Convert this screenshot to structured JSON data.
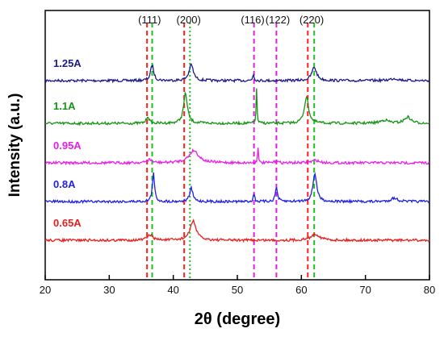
{
  "chart_data": {
    "type": "line",
    "title": "",
    "xlabel": "2θ (degree)",
    "ylabel": "Intensity (a.u.)",
    "xlim": [
      20,
      80
    ],
    "x_ticks": [
      20,
      30,
      40,
      50,
      60,
      70,
      80
    ],
    "y_tick_labels": false,
    "grid": false,
    "legend": "inline labels at left of each trace",
    "reference_lines": [
      {
        "x": 35.9,
        "color": "#ff2020",
        "style": "dashed"
      },
      {
        "x": 36.7,
        "color": "#20c020",
        "style": "dashed"
      },
      {
        "x": 41.7,
        "color": "#ff2020",
        "style": "dashed"
      },
      {
        "x": 42.6,
        "color": "#20c020",
        "style": "dotted"
      },
      {
        "x": 52.6,
        "color": "#e020e0",
        "style": "dashed"
      },
      {
        "x": 56.1,
        "color": "#e020e0",
        "style": "dashed"
      },
      {
        "x": 61.0,
        "color": "#ff2020",
        "style": "dashed"
      },
      {
        "x": 62.0,
        "color": "#20c020",
        "style": "dashed"
      }
    ],
    "annotations": [
      {
        "text": "(111)",
        "x": 36.3
      },
      {
        "text": "(200)",
        "x": 42.4
      },
      {
        "text": "(116)",
        "x": 52.4
      },
      {
        "text": "(122)",
        "x": 56.3
      },
      {
        "text": "(220)",
        "x": 61.6
      }
    ],
    "series": [
      {
        "name": "1.25A",
        "color": "#1a1a8c",
        "offset": 4,
        "peaks": [
          [
            36.7,
            0.9,
            0.28
          ],
          [
            42.8,
            0.9,
            0.4
          ],
          [
            52.5,
            0.35,
            0.15
          ],
          [
            62.0,
            0.75,
            0.45
          ],
          [
            74.5,
            0.12,
            0.8
          ]
        ]
      },
      {
        "name": "1.1A",
        "color": "#149414",
        "offset": 3,
        "peaks": [
          [
            36.0,
            0.4,
            0.25
          ],
          [
            41.9,
            1.7,
            0.35
          ],
          [
            53.0,
            1.9,
            0.08
          ],
          [
            60.8,
            1.5,
            0.4
          ],
          [
            73.0,
            0.18,
            0.8
          ],
          [
            76.6,
            0.35,
            0.6
          ]
        ]
      },
      {
        "name": "0.95A",
        "color": "#e81ee8",
        "offset": 2,
        "peaks": [
          [
            36.3,
            0.18,
            0.4
          ],
          [
            43.2,
            0.7,
            0.9
          ],
          [
            53.2,
            1.3,
            0.06
          ],
          [
            56.1,
            0.18,
            0.2
          ],
          [
            62.2,
            0.15,
            0.6
          ]
        ]
      },
      {
        "name": "0.8A",
        "color": "#2020e6",
        "offset": 1,
        "peaks": [
          [
            36.9,
            1.6,
            0.2
          ],
          [
            42.8,
            0.75,
            0.3
          ],
          [
            52.6,
            0.5,
            0.12
          ],
          [
            56.1,
            0.8,
            0.2
          ],
          [
            62.1,
            1.6,
            0.35
          ],
          [
            74.5,
            0.2,
            0.6
          ]
        ]
      },
      {
        "name": "0.65A",
        "color": "#e61e1e",
        "offset": 0,
        "peaks": [
          [
            36.4,
            0.3,
            0.5
          ],
          [
            43.1,
            1.1,
            0.55
          ],
          [
            62.2,
            0.35,
            0.8
          ]
        ]
      }
    ]
  }
}
